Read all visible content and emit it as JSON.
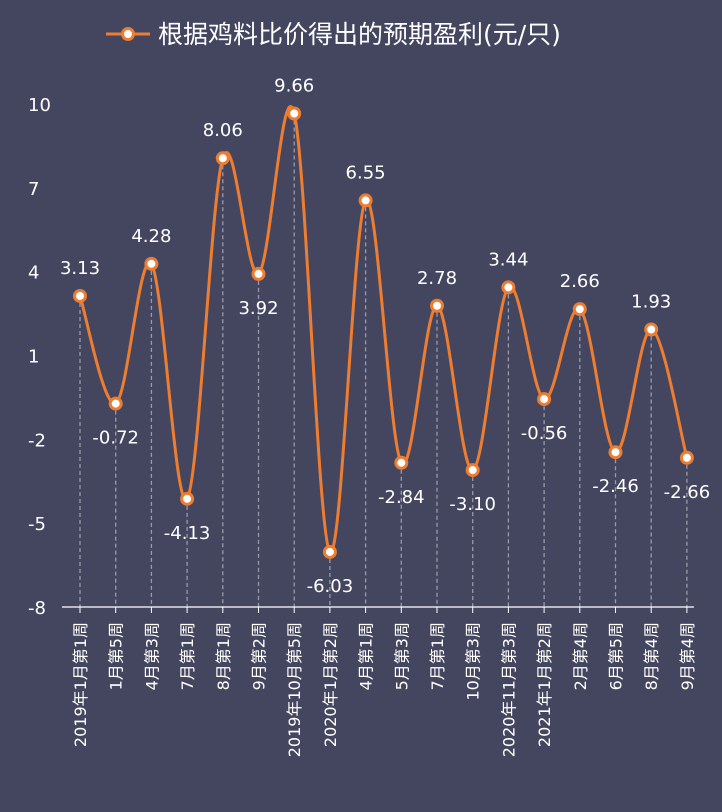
{
  "chart_data": {
    "type": "line",
    "title": "根据鸡料比价得出的预期盈利(元/只)",
    "legend": "top-center",
    "xlabel": "",
    "ylabel": "",
    "ylim": [
      -8,
      10
    ],
    "yticks": [
      10,
      7,
      4,
      1,
      -2,
      -5,
      -8
    ],
    "grid": false,
    "smooth": true,
    "colors": {
      "background": "#444660",
      "line": "#ED7D31",
      "marker_fill": "#FFFFFF",
      "text": "#FFFFFF",
      "drop_line": "#9A9AA8",
      "axis": "#FFFFFF"
    },
    "categories": [
      "2019年1月第1周",
      "1月第5周",
      "4月第3周",
      "7月第1周",
      "8月第1周",
      "9月第2周",
      "2019年10月第5周",
      "2020年1月第2周",
      "4月第1周",
      "5月第3周",
      "7月第1周",
      "10月第3周",
      "2020年11月第3周",
      "2021年1月第2周",
      "2月第4周",
      "6月第5周",
      "8月第4周",
      "9月第4周"
    ],
    "series": [
      {
        "name": "根据鸡料比价得出的预期盈利(元/只)",
        "values": [
          3.13,
          -0.72,
          4.28,
          -4.13,
          8.06,
          3.92,
          9.66,
          -6.03,
          6.55,
          -2.84,
          2.78,
          -3.1,
          3.44,
          -0.56,
          2.66,
          -2.46,
          1.93,
          -2.66
        ],
        "labels": [
          "3.13",
          "-0.72",
          "4.28",
          "-4.13",
          "8.06",
          "3.92",
          "9.66",
          "-6.03",
          "6.55",
          "-2.84",
          "2.78",
          "-3.10",
          "3.44",
          "-0.56",
          "2.66",
          "-2.46",
          "1.93",
          "-2.66"
        ]
      }
    ]
  }
}
